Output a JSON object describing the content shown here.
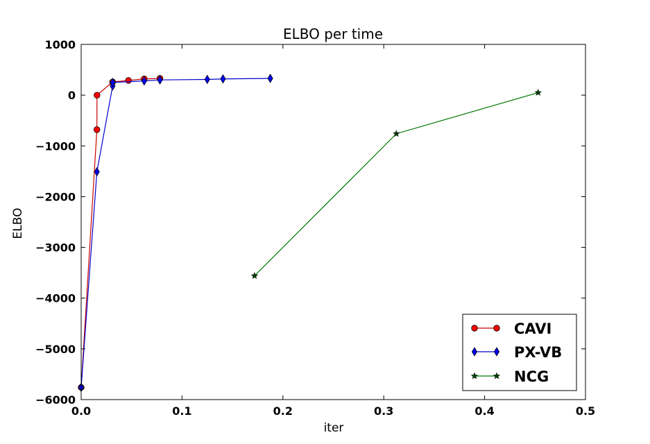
{
  "chart_data": {
    "type": "line",
    "title": "ELBO per time",
    "xlabel": "iter",
    "ylabel": "ELBO",
    "xlim": [
      0.0,
      0.5
    ],
    "ylim": [
      -6000,
      1000
    ],
    "xticks": [
      0.0,
      0.1,
      0.2,
      0.3,
      0.4,
      0.5
    ],
    "xtick_labels": [
      "0.0",
      "0.1",
      "0.2",
      "0.3",
      "0.4",
      "0.5"
    ],
    "yticks": [
      -6000,
      -5000,
      -4000,
      -3000,
      -2000,
      -1000,
      0,
      1000
    ],
    "ytick_labels": [
      "−6000",
      "−5000",
      "−4000",
      "−3000",
      "−2000",
      "−1000",
      "0",
      "1000"
    ],
    "grid": false,
    "legend_position": "bottom-right",
    "series": [
      {
        "name": "CAVI",
        "color": "#ff0000",
        "line_color": "#cc0000",
        "marker": "circle",
        "x": [
          0.0,
          0.0156,
          0.0157,
          0.0312,
          0.0469,
          0.0625,
          0.0781
        ],
        "y": [
          -5760,
          -680,
          0,
          260,
          290,
          320,
          330
        ]
      },
      {
        "name": "PX-VB",
        "color": "#0000ff",
        "line_color": "#0000cc",
        "marker": "diamond",
        "x": [
          0.0,
          0.0156,
          0.0312,
          0.0313,
          0.0625,
          0.0781,
          0.125,
          0.1406,
          0.1875
        ],
        "y": [
          -5760,
          -1510,
          180,
          250,
          280,
          300,
          310,
          320,
          330
        ]
      },
      {
        "name": "NCG",
        "color": "#004400",
        "line_color": "#007700",
        "marker": "star",
        "x": [
          0.1719,
          0.3125,
          0.4531
        ],
        "y": [
          -3560,
          -760,
          50
        ]
      }
    ]
  }
}
